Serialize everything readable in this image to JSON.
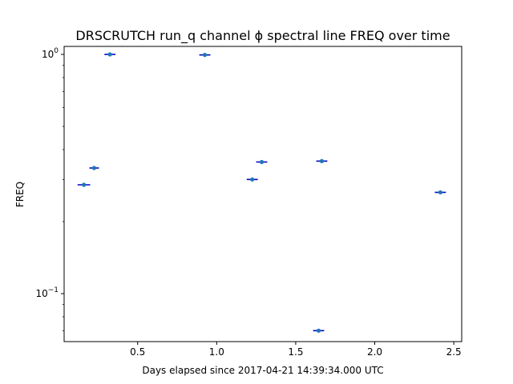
{
  "chart_data": {
    "type": "scatter",
    "title": "DRSCRUTCH run_q channel ϕ spectral line FREQ over time",
    "xlabel": "Days elapsed since 2017-04-21 14:39:34.000 UTC",
    "ylabel": "FREQ",
    "xlim": [
      0.035,
      2.55
    ],
    "ylim": [
      0.063,
      1.08
    ],
    "yscale": "log",
    "grid": false,
    "x_ticks": [
      {
        "value": 0.5,
        "label": "0.5"
      },
      {
        "value": 1.0,
        "label": "1.0"
      },
      {
        "value": 1.5,
        "label": "1.5"
      },
      {
        "value": 2.0,
        "label": "2.0"
      },
      {
        "value": 2.5,
        "label": "2.5"
      }
    ],
    "y_ticks": [
      {
        "value": 0.1,
        "base": "10",
        "exp": "−1"
      },
      {
        "value": 1.0,
        "base": "10",
        "exp": "0"
      }
    ],
    "series": [
      {
        "color": "#1f77b4",
        "errorbar_color": "#0000cc",
        "points": [
          {
            "x": 0.16,
            "y": 0.285,
            "xerr": 0.04
          },
          {
            "x": 0.225,
            "y": 0.335,
            "xerr": 0.03
          },
          {
            "x": 0.325,
            "y": 1.0,
            "xerr": 0.035
          },
          {
            "x": 0.925,
            "y": 0.995,
            "xerr": 0.035
          },
          {
            "x": 1.225,
            "y": 0.3,
            "xerr": 0.035
          },
          {
            "x": 1.285,
            "y": 0.355,
            "xerr": 0.035
          },
          {
            "x": 1.645,
            "y": 0.07,
            "xerr": 0.035
          },
          {
            "x": 1.665,
            "y": 0.358,
            "xerr": 0.035
          },
          {
            "x": 2.415,
            "y": 0.265,
            "xerr": 0.035
          }
        ]
      }
    ]
  }
}
